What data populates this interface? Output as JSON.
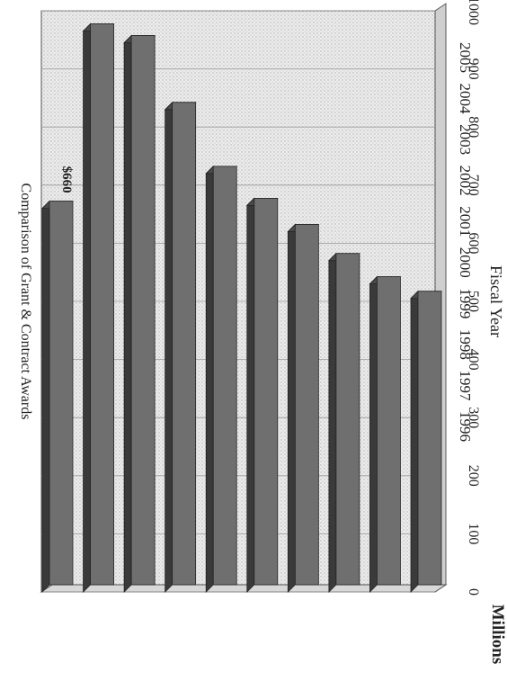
{
  "chart_data": {
    "type": "bar",
    "title": "Comparison of Grant & Contract Awards",
    "xlabel": "Fiscal Year",
    "ylabel": "Millions",
    "categories": [
      "1996",
      "1997",
      "1998",
      "1999",
      "2000",
      "2001",
      "2002",
      "2003",
      "2004",
      "2005"
    ],
    "values": [
      505,
      530,
      570,
      620,
      665,
      720,
      830,
      945,
      965,
      660
    ],
    "annotations": [
      {
        "category": "2005",
        "text": "$660"
      }
    ],
    "ylim": [
      0,
      1000
    ],
    "yticks": [
      0,
      100,
      200,
      300,
      400,
      500,
      600,
      700,
      800,
      900,
      1000
    ],
    "grid": true,
    "orientation": "rotated-90-clockwise"
  },
  "colors": {
    "bar": "#6f6f6f",
    "bar_top": "#4a4a4a",
    "bar_side": "#3a3a3a",
    "plot_bg": "#e6e6e6",
    "floor": "#cfcfcf",
    "gridline": "#9a9a9a"
  }
}
